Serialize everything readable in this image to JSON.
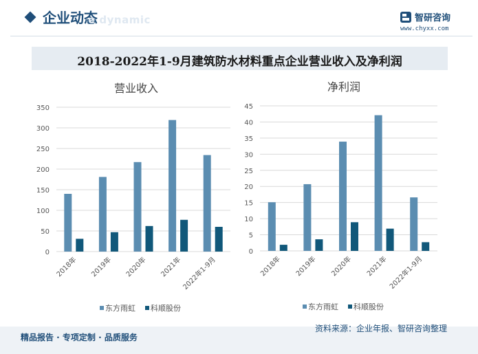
{
  "header": {
    "section_title": "企业动态",
    "section_subtitle": "e dynamic",
    "brand_name": "智研咨询",
    "brand_url": "www.chyxx.com"
  },
  "main_title": "2018-2022年1-9月建筑防水材料重点企业营业收入及净利润",
  "colors": {
    "series1": "#5b8db1",
    "series2": "#11587a"
  },
  "chart_data": [
    {
      "type": "bar",
      "title": "营业收入",
      "categories": [
        "2018年",
        "2019年",
        "2020年",
        "2021年",
        "2022年1-9月"
      ],
      "series": [
        {
          "name": "东方雨虹",
          "values": [
            140,
            181,
            217,
            319,
            234
          ]
        },
        {
          "name": "科顺股份",
          "values": [
            31,
            47,
            62,
            77,
            60
          ]
        }
      ],
      "ylim": [
        0,
        350
      ],
      "yticks": [
        0,
        50,
        100,
        150,
        200,
        250,
        300,
        350
      ],
      "xlabel": "",
      "ylabel": ""
    },
    {
      "type": "bar",
      "title": "净利润",
      "categories": [
        "2018年",
        "2019年",
        "2020年",
        "2021年",
        "2022年1-9月"
      ],
      "series": [
        {
          "name": "东方雨虹",
          "values": [
            15.1,
            20.7,
            33.9,
            42.1,
            16.6
          ]
        },
        {
          "name": "科顺股份",
          "values": [
            1.9,
            3.6,
            8.9,
            6.9,
            2.7
          ]
        }
      ],
      "ylim": [
        0,
        45
      ],
      "yticks": [
        0,
        5,
        10,
        15,
        20,
        25,
        30,
        35,
        40,
        45
      ],
      "xlabel": "",
      "ylabel": ""
    }
  ],
  "footer": {
    "left": "精品报告 · 专项定制 · 品质服务",
    "source": "资料来源：企业年报、智研咨询整理"
  }
}
